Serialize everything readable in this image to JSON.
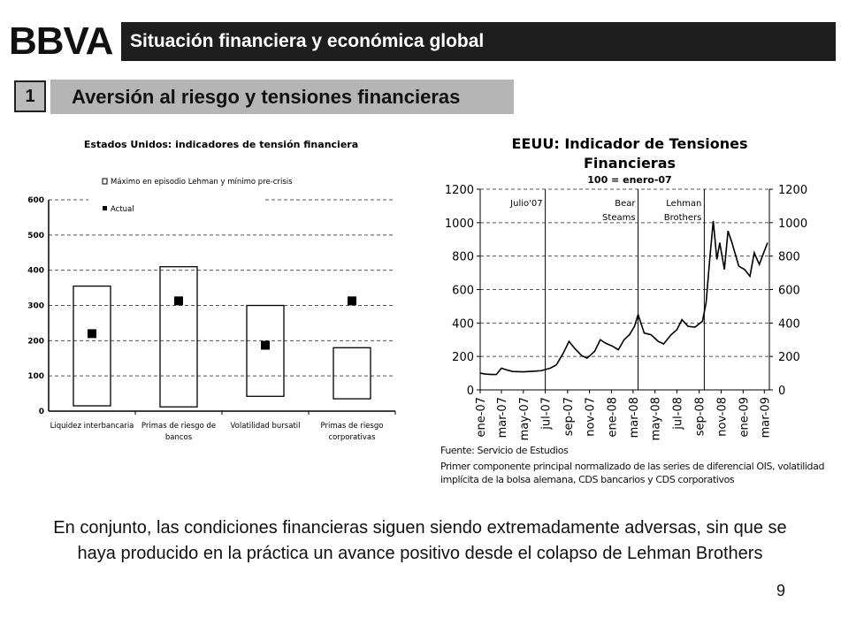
{
  "logo": "BBVA",
  "header": {
    "title": "Situación financiera y económica global"
  },
  "section": {
    "number": "1",
    "title": "Aversión al riesgo y tensiones financieras"
  },
  "conclusion": "En conjunto, las condiciones financieras siguen siendo extremadamente adversas, sin que se haya producido en la práctica un avance positivo desde el colapso de Lehman Brothers",
  "page_number": "9",
  "source": "Fuente: Servicio de Estudios",
  "footnote": "Primer componente principal normalizado de las series de diferencial OIS, volatilidad implícita de la bolsa alemana, CDS bancarios y CDS corporativos",
  "chart_data": [
    {
      "type": "bar",
      "title": "Estados Unidos: indicadores de tensión financiera",
      "legend": [
        "Máximo en episodio Lehman y mínimo pre-crisis",
        "Actual"
      ],
      "categories": [
        "Liquidez interbancaria",
        "Primas de riesgo de bancos",
        "Volatilidad bursatil",
        "Primas de riesgo corporativas"
      ],
      "range_min": [
        15,
        12,
        42,
        35
      ],
      "range_max": [
        355,
        410,
        300,
        180
      ],
      "actual": [
        220,
        313,
        187,
        313
      ],
      "ylim": [
        0,
        600
      ],
      "yticks": [
        "0",
        "100",
        "200",
        "300",
        "400",
        "500",
        "600"
      ],
      "grid": true
    },
    {
      "type": "line",
      "title": "EEUU: Indicador de Tensiones Financieras",
      "subtitle": "100 = enero-07",
      "ylim": [
        0,
        1200
      ],
      "yticks": [
        "0",
        "200",
        "400",
        "600",
        "800",
        "1000",
        "1200"
      ],
      "grid": true,
      "xticks": [
        "ene-07",
        "mar-07",
        "may-07",
        "jul-07",
        "sep-07",
        "nov-07",
        "ene-08",
        "mar-08",
        "may-08",
        "jul-08",
        "sep-08",
        "nov-08",
        "ene-09",
        "mar-09"
      ],
      "events": [
        {
          "date": "2007-07-01",
          "label": "Julio'07"
        },
        {
          "date": "2008-03-15",
          "label": "Bear Steams"
        },
        {
          "date": "2008-09-15",
          "label": "Lehman Brothers"
        }
      ],
      "series": [
        {
          "x": [
            "2007-01-01",
            "2007-01-15",
            "2007-02-01",
            "2007-02-15",
            "2007-03-01",
            "2007-03-15",
            "2007-04-01",
            "2007-05-01",
            "2007-06-01",
            "2007-06-20",
            "2007-07-15",
            "2007-08-01",
            "2007-08-20",
            "2007-09-05",
            "2007-09-20",
            "2007-10-10",
            "2007-10-25",
            "2007-11-15",
            "2007-12-01",
            "2007-12-15",
            "2008-01-05",
            "2008-01-20",
            "2008-02-05",
            "2008-02-20",
            "2008-03-05",
            "2008-03-15",
            "2008-04-01",
            "2008-04-20",
            "2008-05-10",
            "2008-05-25",
            "2008-06-15",
            "2008-07-01",
            "2008-07-15",
            "2008-08-01",
            "2008-08-20",
            "2008-09-10",
            "2008-09-20",
            "2008-10-01",
            "2008-10-10",
            "2008-10-20",
            "2008-10-28",
            "2008-11-10",
            "2008-11-20",
            "2008-12-01",
            "2008-12-20",
            "2009-01-05",
            "2009-01-20",
            "2009-02-01",
            "2009-02-15",
            "2009-03-01",
            "2009-03-10"
          ],
          "y": [
            100,
            95,
            92,
            92,
            130,
            120,
            110,
            108,
            112,
            115,
            130,
            150,
            220,
            290,
            250,
            205,
            190,
            230,
            300,
            280,
            260,
            240,
            300,
            330,
            380,
            450,
            340,
            330,
            290,
            275,
            330,
            360,
            420,
            380,
            375,
            410,
            520,
            800,
            1010,
            780,
            880,
            720,
            950,
            880,
            740,
            720,
            680,
            820,
            750,
            830,
            880
          ]
        }
      ]
    }
  ]
}
